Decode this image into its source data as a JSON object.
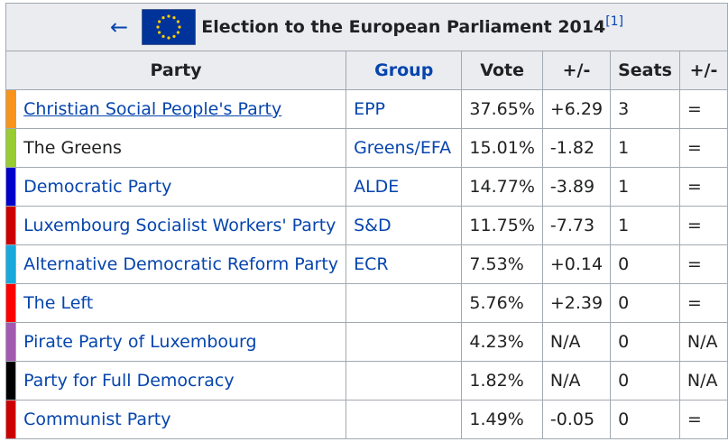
{
  "back": "←",
  "title": "Election to the European Parliament 2014",
  "ref": "[1]",
  "columns": [
    "Party",
    "Group",
    "Vote",
    "+/-",
    "Seats",
    "+/-"
  ],
  "rows": [
    {
      "color": "#f7941d",
      "party": "Christian Social People's Party",
      "group": "EPP",
      "vote": "37.65%",
      "change": "+6.29",
      "seats": "3",
      "seat_change": "="
    },
    {
      "color": "#99cc33",
      "party": "The Greens",
      "group": "Greens/EFA",
      "vote": "15.01%",
      "change": "-1.82",
      "seats": "1",
      "seat_change": "="
    },
    {
      "color": "#0000c8",
      "party": "Democratic Party",
      "group": "ALDE",
      "vote": "14.77%",
      "change": "-3.89",
      "seats": "1",
      "seat_change": "="
    },
    {
      "color": "#cc0000",
      "party": "Luxembourg Socialist Workers' Party",
      "group": "S&D",
      "vote": "11.75%",
      "change": "-7.73",
      "seats": "1",
      "seat_change": "="
    },
    {
      "color": "#1aa8dc",
      "party": "Alternative Democratic Reform Party",
      "group": "ECR",
      "vote": "7.53%",
      "change": "+0.14",
      "seats": "0",
      "seat_change": "="
    },
    {
      "color": "#ff0000",
      "party": "The Left",
      "group": null,
      "vote": "5.76%",
      "change": "+2.39",
      "seats": "0",
      "seat_change": "="
    },
    {
      "color": "#a25ab0",
      "party": "Pirate Party of Luxembourg",
      "group": null,
      "vote": "4.23%",
      "change": "N/A",
      "seats": "0",
      "seat_change": "N/A"
    },
    {
      "color": "#000000",
      "party": "Party for Full Democracy",
      "group": null,
      "vote": "1.82%",
      "change": "N/A",
      "seats": "0",
      "seat_change": "N/A"
    },
    {
      "color": "#cc0000",
      "party": "Communist Party",
      "group": null,
      "vote": "1.49%",
      "change": "-0.05",
      "seats": "0",
      "seat_change": "="
    }
  ]
}
